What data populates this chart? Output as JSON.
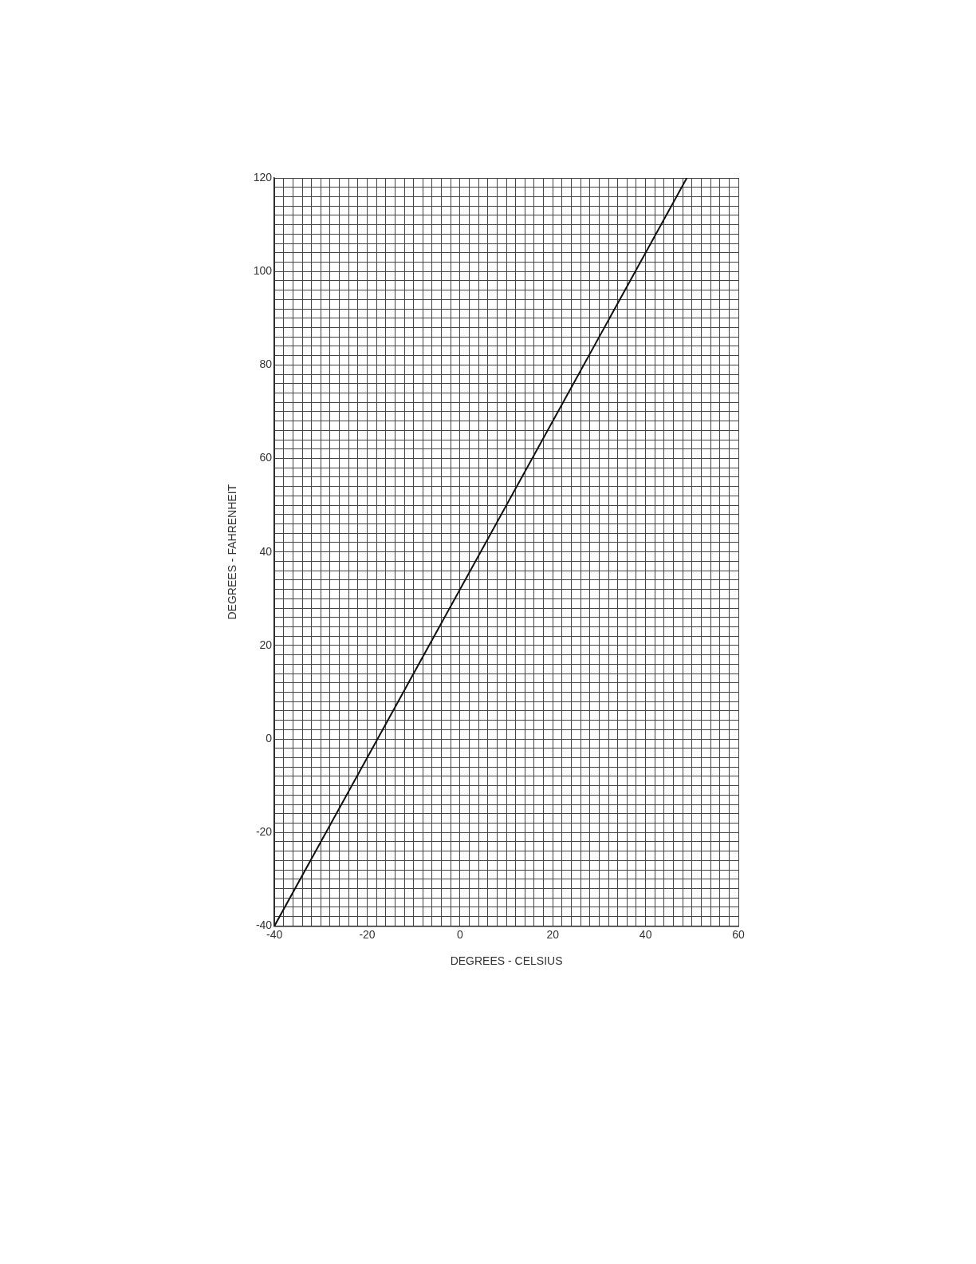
{
  "chart_data": {
    "type": "line",
    "xlabel": "DEGREES - CELSIUS",
    "ylabel": "DEGREES - FAHRENHEIT",
    "series": [
      {
        "color": "#111111",
        "x": [
          -40,
          48.89
        ],
        "values": [
          -40,
          120
        ]
      }
    ],
    "xlim": [
      -40,
      60
    ],
    "ylim": [
      -40,
      120
    ],
    "xticks": [
      -40,
      {
        "value": -38,
        "label": null
      },
      {
        "value": -36,
        "label": null
      },
      {
        "value": -34,
        "label": null
      },
      {
        "value": -32,
        "label": null
      },
      {
        "value": -30,
        "label": null
      },
      {
        "value": -28,
        "label": null
      },
      {
        "value": -26,
        "label": null
      },
      {
        "value": -24,
        "label": null
      },
      {
        "value": -22,
        "label": null
      },
      -20,
      {
        "value": -18,
        "label": null
      },
      {
        "value": -16,
        "label": null
      },
      {
        "value": -14,
        "label": null
      },
      {
        "value": -12,
        "label": null
      },
      {
        "value": -10,
        "label": null
      },
      {
        "value": -8,
        "label": null
      },
      {
        "value": -6,
        "label": null
      },
      {
        "value": -4,
        "label": null
      },
      {
        "value": -2,
        "label": null
      },
      0,
      {
        "value": 2,
        "label": null
      },
      {
        "value": 4,
        "label": null
      },
      {
        "value": 6,
        "label": null
      },
      {
        "value": 8,
        "label": null
      },
      {
        "value": 10,
        "label": null
      },
      {
        "value": 12,
        "label": null
      },
      {
        "value": 14,
        "label": null
      },
      {
        "value": 16,
        "label": null
      },
      {
        "value": 18,
        "label": null
      },
      20,
      {
        "value": 22,
        "label": null
      },
      {
        "value": 24,
        "label": null
      },
      {
        "value": 26,
        "label": null
      },
      {
        "value": 28,
        "label": null
      },
      {
        "value": 30,
        "label": null
      },
      {
        "value": 32,
        "label": null
      },
      {
        "value": 34,
        "label": null
      },
      {
        "value": 36,
        "label": null
      },
      {
        "value": 38,
        "label": null
      },
      40,
      {
        "value": 42,
        "label": null
      },
      {
        "value": 44,
        "label": null
      },
      {
        "value": 46,
        "label": null
      },
      {
        "value": 48,
        "label": null
      },
      {
        "value": 50,
        "label": null
      },
      {
        "value": 52,
        "label": null
      },
      {
        "value": 54,
        "label": null
      },
      {
        "value": 56,
        "label": null
      },
      {
        "value": 58,
        "label": null
      },
      60
    ],
    "yticks": [
      -40,
      {
        "value": -38,
        "label": null
      },
      {
        "value": -36,
        "label": null
      },
      {
        "value": -34,
        "label": null
      },
      {
        "value": -32,
        "label": null
      },
      {
        "value": -30,
        "label": null
      },
      {
        "value": -28,
        "label": null
      },
      {
        "value": -26,
        "label": null
      },
      {
        "value": -24,
        "label": null
      },
      {
        "value": -22,
        "label": null
      },
      -20,
      {
        "value": -18,
        "label": null
      },
      {
        "value": -16,
        "label": null
      },
      {
        "value": -14,
        "label": null
      },
      {
        "value": -12,
        "label": null
      },
      {
        "value": -10,
        "label": null
      },
      {
        "value": -8,
        "label": null
      },
      {
        "value": -6,
        "label": null
      },
      {
        "value": -4,
        "label": null
      },
      {
        "value": -2,
        "label": null
      },
      0,
      {
        "value": 2,
        "label": null
      },
      {
        "value": 4,
        "label": null
      },
      {
        "value": 6,
        "label": null
      },
      {
        "value": 8,
        "label": null
      },
      {
        "value": 10,
        "label": null
      },
      {
        "value": 12,
        "label": null
      },
      {
        "value": 14,
        "label": null
      },
      {
        "value": 16,
        "label": null
      },
      {
        "value": 18,
        "label": null
      },
      20,
      {
        "value": 22,
        "label": null
      },
      {
        "value": 24,
        "label": null
      },
      {
        "value": 26,
        "label": null
      },
      {
        "value": 28,
        "label": null
      },
      {
        "value": 30,
        "label": null
      },
      {
        "value": 32,
        "label": null
      },
      {
        "value": 34,
        "label": null
      },
      {
        "value": 36,
        "label": null
      },
      {
        "value": 38,
        "label": null
      },
      40,
      {
        "value": 42,
        "label": null
      },
      {
        "value": 44,
        "label": null
      },
      {
        "value": 46,
        "label": null
      },
      {
        "value": 48,
        "label": null
      },
      {
        "value": 50,
        "label": null
      },
      {
        "value": 52,
        "label": null
      },
      {
        "value": 54,
        "label": null
      },
      {
        "value": 56,
        "label": null
      },
      {
        "value": 58,
        "label": null
      },
      60,
      {
        "value": 62,
        "label": null
      },
      {
        "value": 64,
        "label": null
      },
      {
        "value": 66,
        "label": null
      },
      {
        "value": 68,
        "label": null
      },
      {
        "value": 70,
        "label": null
      },
      {
        "value": 72,
        "label": null
      },
      {
        "value": 74,
        "label": null
      },
      {
        "value": 76,
        "label": null
      },
      {
        "value": 78,
        "label": null
      },
      80,
      {
        "value": 82,
        "label": null
      },
      {
        "value": 84,
        "label": null
      },
      {
        "value": 86,
        "label": null
      },
      {
        "value": 88,
        "label": null
      },
      {
        "value": 90,
        "label": null
      },
      {
        "value": 92,
        "label": null
      },
      {
        "value": 94,
        "label": null
      },
      {
        "value": 96,
        "label": null
      },
      {
        "value": 98,
        "label": null
      },
      100,
      {
        "value": 102,
        "label": null
      },
      {
        "value": 104,
        "label": null
      },
      {
        "value": 106,
        "label": null
      },
      {
        "value": 108,
        "label": null
      },
      {
        "value": 110,
        "label": null
      },
      {
        "value": 112,
        "label": null
      },
      {
        "value": 114,
        "label": null
      },
      {
        "value": 116,
        "label": null
      },
      {
        "value": 118,
        "label": null
      },
      120
    ],
    "grid": true,
    "legend": false,
    "marker": "none",
    "line_style": "solid"
  }
}
